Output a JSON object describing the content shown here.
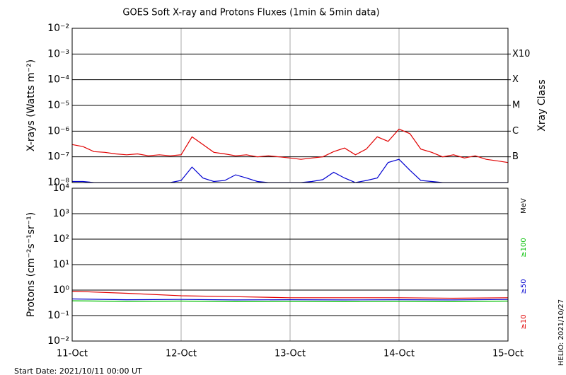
{
  "chart_data": [
    {
      "type": "line",
      "log_y": true,
      "grid": true,
      "title": "GOES Soft X-ray and Protons Fluxes   (1min & 5min data)",
      "ylabel": "X-rays (Watts m⁻²)",
      "y2label": "Xray Class",
      "xlim": [
        0,
        4
      ],
      "xticks": [
        {
          "value": 0,
          "label": "11-Oct"
        },
        {
          "value": 1,
          "label": "12-Oct"
        },
        {
          "value": 2,
          "label": "13-Oct"
        },
        {
          "value": 3,
          "label": "14-Oct"
        },
        {
          "value": 4,
          "label": "15-Oct"
        }
      ],
      "ylim": [
        1e-08,
        0.01
      ],
      "yticks": [
        {
          "value": 1e-08,
          "label": "10⁻⁸"
        },
        {
          "value": 1e-07,
          "label": "10⁻⁷"
        },
        {
          "value": 1e-06,
          "label": "10⁻⁶"
        },
        {
          "value": 1e-05,
          "label": "10⁻⁵"
        },
        {
          "value": 0.0001,
          "label": "10⁻⁴"
        },
        {
          "value": 0.001,
          "label": "10⁻³"
        },
        {
          "value": 0.01,
          "label": "10⁻²"
        }
      ],
      "class_ticks": [
        {
          "value": 1e-07,
          "label": "B"
        },
        {
          "value": 1e-06,
          "label": "C"
        },
        {
          "value": 1e-05,
          "label": "M"
        },
        {
          "value": 0.0001,
          "label": "X"
        },
        {
          "value": 0.001,
          "label": "X10"
        }
      ],
      "x": [
        0,
        0.1,
        0.2,
        0.3,
        0.4,
        0.5,
        0.6,
        0.7,
        0.8,
        0.9,
        1,
        1.1,
        1.2,
        1.3,
        1.4,
        1.5,
        1.6,
        1.7,
        1.8,
        1.9,
        2,
        2.1,
        2.2,
        2.3,
        2.4,
        2.5,
        2.6,
        2.7,
        2.8,
        2.9,
        3,
        3.1,
        3.2,
        3.3,
        3.4,
        3.5,
        3.6,
        3.7,
        3.8,
        3.9,
        4
      ],
      "series": [
        {
          "color": "#e00000",
          "values": [
            3e-07,
            2.5e-07,
            1.6e-07,
            1.5e-07,
            1.3e-07,
            1.2e-07,
            1.3e-07,
            1.1e-07,
            1.2e-07,
            1.1e-07,
            1.2e-07,
            6e-07,
            3e-07,
            1.5e-07,
            1.3e-07,
            1.1e-07,
            1.2e-07,
            1e-07,
            1.1e-07,
            1e-07,
            9e-08,
            8e-08,
            9e-08,
            1e-07,
            1.6e-07,
            2.2e-07,
            1.2e-07,
            2e-07,
            6e-07,
            4e-07,
            1.2e-06,
            8e-07,
            2e-07,
            1.5e-07,
            1e-07,
            1.2e-07,
            9e-08,
            1.1e-07,
            8e-08,
            7e-08,
            6e-08
          ]
        },
        {
          "color": "#0000d0",
          "values": [
            1.1e-08,
            1.1e-08,
            1e-08,
            1e-08,
            1e-08,
            1e-08,
            1e-08,
            1e-08,
            1e-08,
            1e-08,
            1.2e-08,
            4e-08,
            1.5e-08,
            1.1e-08,
            1.2e-08,
            2e-08,
            1.5e-08,
            1.1e-08,
            1e-08,
            1e-08,
            1e-08,
            1e-08,
            1.1e-08,
            1.3e-08,
            2.5e-08,
            1.5e-08,
            1e-08,
            1.2e-08,
            1.5e-08,
            6e-08,
            8e-08,
            3e-08,
            1.2e-08,
            1.1e-08,
            1e-08,
            1e-08,
            1e-08,
            1e-08,
            1e-08,
            1e-08,
            1e-08
          ]
        }
      ]
    },
    {
      "type": "line",
      "log_y": true,
      "grid": true,
      "ylabel": "Protons (cm⁻²s⁻¹sr⁻¹)",
      "unit": "MeV",
      "threshold": 10,
      "xlim": [
        0,
        4
      ],
      "xticks": [
        {
          "value": 0,
          "label": "11-Oct"
        },
        {
          "value": 1,
          "label": "12-Oct"
        },
        {
          "value": 2,
          "label": "13-Oct"
        },
        {
          "value": 3,
          "label": "14-Oct"
        },
        {
          "value": 4,
          "label": "15-Oct"
        }
      ],
      "ylim": [
        0.01,
        10000.0
      ],
      "yticks": [
        {
          "value": 0.01,
          "label": "10⁻²"
        },
        {
          "value": 0.1,
          "label": "10⁻¹"
        },
        {
          "value": 1,
          "label": "10⁰"
        },
        {
          "value": 10,
          "label": "10¹"
        },
        {
          "value": 100,
          "label": "10²"
        },
        {
          "value": 1000,
          "label": "10³"
        },
        {
          "value": 10000,
          "label": "10⁴"
        }
      ],
      "x": [
        0,
        0.5,
        1,
        1.5,
        2,
        2.5,
        3,
        3.5,
        4
      ],
      "series": [
        {
          "name": "≥100",
          "color": "#00c000",
          "values": [
            0.38,
            0.36,
            0.37,
            0.35,
            0.36,
            0.35,
            0.36,
            0.35,
            0.37
          ]
        },
        {
          "name": "≥50",
          "color": "#0000d0",
          "values": [
            0.45,
            0.42,
            0.43,
            0.41,
            0.42,
            0.41,
            0.42,
            0.41,
            0.43
          ]
        },
        {
          "name": "≥10",
          "color": "#e00000",
          "values": [
            0.9,
            0.75,
            0.6,
            0.55,
            0.5,
            0.5,
            0.5,
            0.48,
            0.5
          ]
        }
      ]
    }
  ],
  "footer": {
    "start_date": "Start Date: 2021/10/11 00:00 UT",
    "credit": "HELIO: 2021/10/27"
  }
}
